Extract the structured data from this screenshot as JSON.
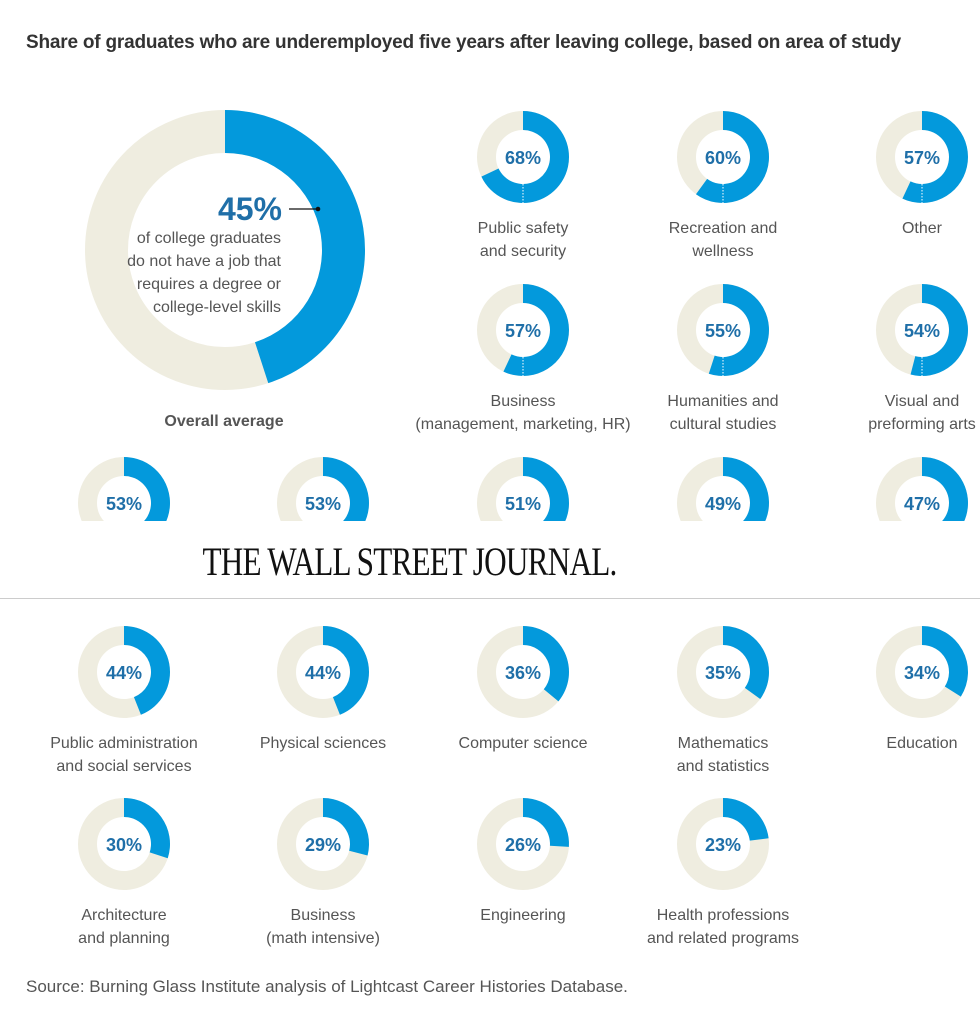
{
  "chart_data": {
    "type": "donut",
    "title": "Share of graduates who are underemployed five years after leaving college, based on area of study",
    "overall": {
      "label": "Overall average",
      "value": 45,
      "value_label": "45%",
      "description": [
        "of college graduates",
        "do not have a job that",
        "requires a degree or",
        "college-level skills"
      ]
    },
    "categories": [
      {
        "label": [
          "Public safety",
          "and security"
        ],
        "value": 68
      },
      {
        "label": [
          "Recreation and",
          "wellness"
        ],
        "value": 60
      },
      {
        "label": [
          "Other"
        ],
        "value": 57
      },
      {
        "label": [
          "Business",
          "(management, marketing, HR)"
        ],
        "value": 57
      },
      {
        "label": [
          "Humanities and",
          "cultural studies"
        ],
        "value": 55
      },
      {
        "label": [
          "Visual and",
          "preforming arts"
        ],
        "value": 54
      },
      {
        "label": [],
        "value": 53
      },
      {
        "label": [],
        "value": 53
      },
      {
        "label": [],
        "value": 51
      },
      {
        "label": [],
        "value": 49
      },
      {
        "label": [],
        "value": 47
      },
      {
        "label": [
          "Public administration",
          "and social services"
        ],
        "value": 44
      },
      {
        "label": [
          "Physical sciences"
        ],
        "value": 44
      },
      {
        "label": [
          "Computer science"
        ],
        "value": 36
      },
      {
        "label": [
          "Mathematics",
          "and statistics"
        ],
        "value": 35
      },
      {
        "label": [
          "Education"
        ],
        "value": 34
      },
      {
        "label": [
          "Architecture",
          "and planning"
        ],
        "value": 30
      },
      {
        "label": [
          "Business",
          "(math intensive)"
        ],
        "value": 29
      },
      {
        "label": [
          "Engineering"
        ],
        "value": 26
      },
      {
        "label": [
          "Health professions",
          "and related programs"
        ],
        "value": 23
      }
    ],
    "colors": {
      "share": "#0399DC",
      "remainder": "#EFEDE0",
      "value_text": "#1F6FA8"
    },
    "source": "Source: Burning Glass Institute analysis of Lightcast Career Histories Database."
  },
  "banner": {
    "logo_text": "THE WALL STREET JOURNAL."
  }
}
